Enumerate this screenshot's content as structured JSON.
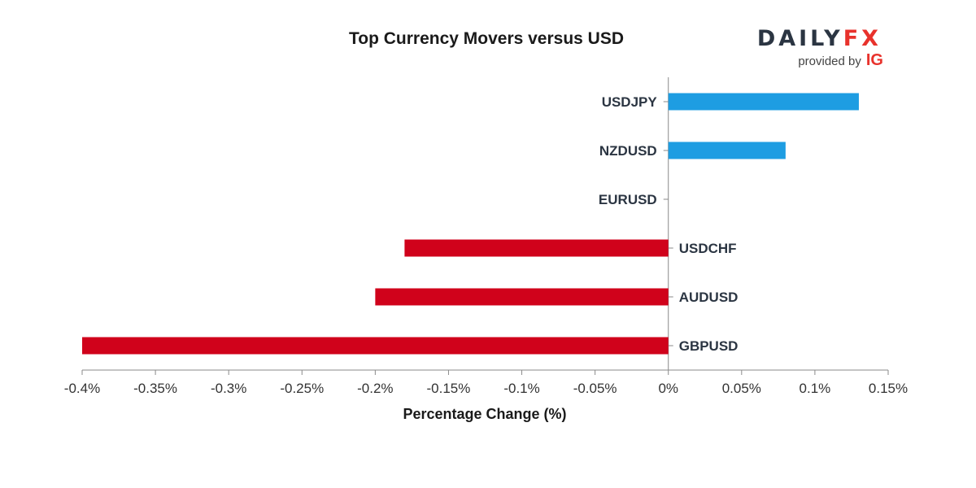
{
  "chart_data": {
    "type": "bar",
    "orientation": "horizontal",
    "title": "Top Currency Movers versus USD",
    "xlabel": "Percentage Change (%)",
    "categories": [
      "USDJPY",
      "NZDUSD",
      "EURUSD",
      "USDCHF",
      "AUDUSD",
      "GBPUSD"
    ],
    "values": [
      0.13,
      0.08,
      0.0,
      -0.18,
      -0.2,
      -0.4
    ],
    "xlim": [
      -0.4,
      0.15
    ],
    "xticks": [
      -0.4,
      -0.35,
      -0.3,
      -0.25,
      -0.2,
      -0.15,
      -0.1,
      -0.05,
      0,
      0.05,
      0.1,
      0.15
    ],
    "xtick_labels": [
      "-0.4%",
      "-0.35%",
      "-0.3%",
      "-0.25%",
      "-0.2%",
      "-0.15%",
      "-0.1%",
      "-0.05%",
      "0%",
      "0.05%",
      "0.1%",
      "0.15%"
    ],
    "grid": false,
    "colors": {
      "positive": "#1e9de2",
      "negative": "#d0021b"
    }
  },
  "brand": {
    "logo_left": "DAILY",
    "logo_right": "FX",
    "provided_by": "provided by",
    "ig": "IG",
    "dark_color": "#2b3542",
    "accent_color": "#e8322c"
  }
}
